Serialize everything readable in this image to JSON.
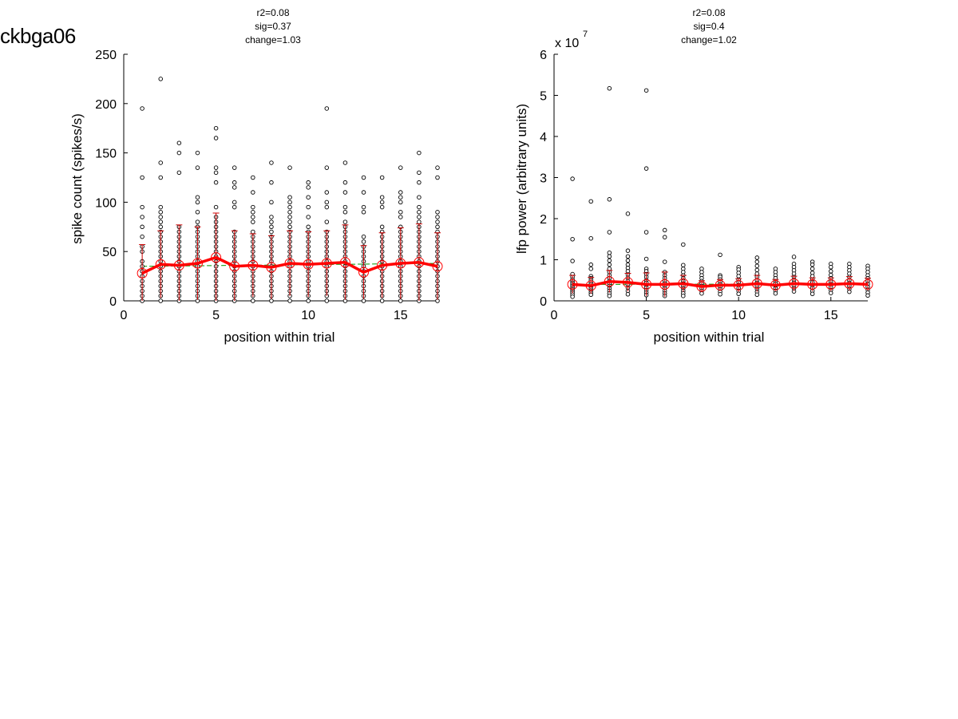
{
  "page_label": "ckbga06",
  "chart_data": [
    {
      "type": "scatter",
      "annotation": [
        "r2=0.08",
        "sig=0.37",
        "change=1.03"
      ],
      "xlabel": "position within trial",
      "ylabel": "spike count (spikes/s)",
      "exponent_label": "",
      "xlim": [
        0,
        17
      ],
      "ylim": [
        0,
        250
      ],
      "xticks": [
        0,
        5,
        10,
        15
      ],
      "xtick_labels": [
        "0",
        "5",
        "10",
        "15"
      ],
      "yticks": [
        0,
        50,
        100,
        150,
        200,
        250
      ],
      "ytick_labels": [
        "0",
        "50",
        "100",
        "150",
        "200",
        "250"
      ],
      "grid": false,
      "trial_points": [
        {
          "x": 1,
          "y": [
            195,
            125,
            95,
            85,
            75,
            65,
            55,
            50,
            40,
            35,
            30,
            25,
            20,
            15,
            10,
            5,
            0
          ]
        },
        {
          "x": 2,
          "y": [
            225,
            140,
            125,
            95,
            90,
            85,
            80,
            75,
            70,
            65,
            60,
            55,
            50,
            45,
            40,
            35,
            30,
            25,
            20,
            15,
            10,
            5,
            0
          ]
        },
        {
          "x": 3,
          "y": [
            160,
            150,
            130,
            75,
            70,
            65,
            60,
            55,
            50,
            45,
            40,
            35,
            30,
            25,
            20,
            15,
            10,
            5,
            0
          ]
        },
        {
          "x": 4,
          "y": [
            150,
            135,
            105,
            100,
            90,
            80,
            75,
            70,
            65,
            60,
            55,
            50,
            45,
            40,
            35,
            30,
            25,
            20,
            15,
            10,
            5,
            0
          ]
        },
        {
          "x": 5,
          "y": [
            175,
            165,
            135,
            130,
            120,
            95,
            85,
            80,
            75,
            70,
            65,
            60,
            55,
            50,
            45,
            40,
            35,
            30,
            25,
            20,
            15,
            10,
            5,
            0
          ]
        },
        {
          "x": 6,
          "y": [
            135,
            120,
            115,
            100,
            95,
            70,
            65,
            60,
            55,
            50,
            45,
            40,
            35,
            30,
            25,
            20,
            15,
            10,
            5,
            0
          ]
        },
        {
          "x": 7,
          "y": [
            125,
            110,
            95,
            90,
            85,
            80,
            70,
            65,
            60,
            55,
            50,
            45,
            40,
            35,
            30,
            25,
            20,
            15,
            10,
            5,
            0
          ]
        },
        {
          "x": 8,
          "y": [
            140,
            120,
            100,
            85,
            80,
            75,
            70,
            65,
            60,
            55,
            50,
            45,
            40,
            35,
            30,
            25,
            20,
            15,
            10,
            5,
            0
          ]
        },
        {
          "x": 9,
          "y": [
            135,
            105,
            100,
            95,
            90,
            85,
            80,
            75,
            70,
            65,
            60,
            55,
            50,
            45,
            40,
            35,
            30,
            25,
            20,
            15,
            10,
            5,
            0
          ]
        },
        {
          "x": 10,
          "y": [
            120,
            115,
            105,
            95,
            85,
            75,
            70,
            65,
            60,
            55,
            50,
            45,
            40,
            35,
            30,
            25,
            20,
            15,
            10,
            5,
            0
          ]
        },
        {
          "x": 11,
          "y": [
            195,
            135,
            110,
            100,
            95,
            80,
            70,
            65,
            60,
            55,
            50,
            45,
            40,
            35,
            30,
            25,
            20,
            15,
            10,
            5,
            0
          ]
        },
        {
          "x": 12,
          "y": [
            140,
            120,
            110,
            95,
            90,
            80,
            75,
            70,
            65,
            60,
            55,
            50,
            45,
            40,
            35,
            30,
            25,
            20,
            15,
            10,
            5,
            0
          ]
        },
        {
          "x": 13,
          "y": [
            125,
            110,
            95,
            90,
            65,
            60,
            55,
            50,
            45,
            40,
            35,
            30,
            25,
            20,
            15,
            10,
            5,
            0
          ]
        },
        {
          "x": 14,
          "y": [
            125,
            105,
            100,
            95,
            75,
            70,
            65,
            60,
            55,
            50,
            45,
            40,
            35,
            30,
            25,
            20,
            15,
            10,
            5,
            0
          ]
        },
        {
          "x": 15,
          "y": [
            135,
            110,
            105,
            100,
            90,
            85,
            75,
            70,
            65,
            60,
            55,
            50,
            45,
            40,
            35,
            30,
            25,
            20,
            15,
            10,
            5,
            0
          ]
        },
        {
          "x": 16,
          "y": [
            150,
            130,
            120,
            105,
            95,
            90,
            85,
            80,
            75,
            70,
            65,
            60,
            55,
            50,
            45,
            40,
            35,
            30,
            25,
            20,
            15,
            10,
            5,
            0
          ]
        },
        {
          "x": 17,
          "y": [
            135,
            125,
            90,
            85,
            80,
            75,
            70,
            65,
            60,
            55,
            50,
            45,
            40,
            35,
            30,
            25,
            20,
            15,
            10,
            5,
            0
          ]
        }
      ],
      "mean": {
        "x": [
          1,
          2,
          3,
          4,
          5,
          6,
          7,
          8,
          9,
          10,
          11,
          12,
          13,
          14,
          15,
          16,
          17
        ],
        "y": [
          28,
          37,
          36,
          38,
          44,
          35,
          36,
          34,
          38,
          37,
          38,
          39,
          29,
          36,
          38,
          39,
          35
        ]
      },
      "error": [
        29,
        34,
        41,
        37,
        45,
        36,
        32,
        32,
        33,
        33,
        33,
        38,
        27,
        33,
        36,
        39,
        34
      ],
      "fit": {
        "x": [
          1,
          17
        ],
        "y": [
          35,
          38
        ]
      },
      "colors": {
        "points": "#000000",
        "mean": "#ff0000",
        "error": "#cc0000",
        "fit": "#009900"
      }
    },
    {
      "type": "scatter",
      "annotation": [
        "r2=0.08",
        "sig=0.4",
        "change=1.02"
      ],
      "xlabel": "position within trial",
      "ylabel": "lfp power (arbitrary units)",
      "exponent_label": "x 10",
      "exponent_power": "7",
      "xlim": [
        0,
        17
      ],
      "ylim": [
        0,
        6
      ],
      "xticks": [
        0,
        5,
        10,
        15
      ],
      "xtick_labels": [
        "0",
        "5",
        "10",
        "15"
      ],
      "yticks": [
        0,
        1,
        2,
        3,
        4,
        5,
        6
      ],
      "ytick_labels": [
        "0",
        "1",
        "2",
        "3",
        "4",
        "5",
        "6"
      ],
      "grid": false,
      "trial_points": [
        {
          "x": 1,
          "y": [
            2.97,
            1.5,
            0.97,
            0.65,
            0.58,
            0.52,
            0.48,
            0.44,
            0.4,
            0.36,
            0.32,
            0.28,
            0.24,
            0.2,
            0.15,
            0.1
          ]
        },
        {
          "x": 2,
          "y": [
            2.42,
            1.52,
            0.88,
            0.78,
            0.6,
            0.55,
            0.5,
            0.45,
            0.4,
            0.35,
            0.3,
            0.25,
            0.2,
            0.15
          ]
        },
        {
          "x": 3,
          "y": [
            5.17,
            2.47,
            1.67,
            1.17,
            1.08,
            0.98,
            0.88,
            0.78,
            0.7,
            0.62,
            0.55,
            0.48,
            0.42,
            0.36,
            0.3,
            0.24,
            0.18,
            0.12
          ]
        },
        {
          "x": 4,
          "y": [
            2.12,
            1.22,
            1.08,
            0.98,
            0.88,
            0.8,
            0.72,
            0.64,
            0.56,
            0.48,
            0.4,
            0.32,
            0.24,
            0.16
          ]
        },
        {
          "x": 5,
          "y": [
            5.12,
            3.22,
            1.67,
            1.02,
            0.78,
            0.72,
            0.65,
            0.58,
            0.5,
            0.44,
            0.38,
            0.32,
            0.26,
            0.2,
            0.14
          ]
        },
        {
          "x": 6,
          "y": [
            1.72,
            1.55,
            0.95,
            0.7,
            0.62,
            0.55,
            0.48,
            0.42,
            0.36,
            0.3,
            0.24,
            0.18,
            0.12
          ]
        },
        {
          "x": 7,
          "y": [
            1.37,
            0.87,
            0.78,
            0.7,
            0.62,
            0.55,
            0.48,
            0.42,
            0.36,
            0.3,
            0.24,
            0.18,
            0.12
          ]
        },
        {
          "x": 8,
          "y": [
            0.78,
            0.7,
            0.62,
            0.55,
            0.48,
            0.42,
            0.36,
            0.3,
            0.24,
            0.18
          ]
        },
        {
          "x": 9,
          "y": [
            1.12,
            0.62,
            0.58,
            0.52,
            0.46,
            0.4,
            0.34,
            0.28,
            0.22,
            0.16
          ]
        },
        {
          "x": 10,
          "y": [
            0.82,
            0.76,
            0.68,
            0.6,
            0.52,
            0.45,
            0.38,
            0.31,
            0.24,
            0.17
          ]
        },
        {
          "x": 11,
          "y": [
            1.05,
            0.95,
            0.85,
            0.75,
            0.66,
            0.58,
            0.5,
            0.43,
            0.36,
            0.29,
            0.22,
            0.15
          ]
        },
        {
          "x": 12,
          "y": [
            0.78,
            0.7,
            0.62,
            0.55,
            0.48,
            0.42,
            0.36,
            0.3,
            0.24,
            0.18
          ]
        },
        {
          "x": 13,
          "y": [
            1.07,
            0.9,
            0.82,
            0.74,
            0.66,
            0.58,
            0.51,
            0.44,
            0.37,
            0.3,
            0.23
          ]
        },
        {
          "x": 14,
          "y": [
            0.95,
            0.88,
            0.78,
            0.68,
            0.6,
            0.52,
            0.45,
            0.38,
            0.31,
            0.24,
            0.17
          ]
        },
        {
          "x": 15,
          "y": [
            0.9,
            0.82,
            0.72,
            0.63,
            0.55,
            0.47,
            0.4,
            0.33,
            0.26,
            0.19
          ]
        },
        {
          "x": 16,
          "y": [
            0.9,
            0.82,
            0.74,
            0.66,
            0.58,
            0.5,
            0.43,
            0.36,
            0.29,
            0.22
          ]
        },
        {
          "x": 17,
          "y": [
            0.85,
            0.78,
            0.7,
            0.62,
            0.55,
            0.48,
            0.41,
            0.34,
            0.27,
            0.2,
            0.13
          ]
        }
      ],
      "mean": {
        "x": [
          1,
          2,
          3,
          4,
          5,
          6,
          7,
          8,
          9,
          10,
          11,
          12,
          13,
          14,
          15,
          16,
          17
        ],
        "y": [
          0.4,
          0.37,
          0.47,
          0.45,
          0.4,
          0.4,
          0.42,
          0.35,
          0.38,
          0.38,
          0.42,
          0.38,
          0.42,
          0.4,
          0.4,
          0.42,
          0.4
        ]
      },
      "error": [
        0.22,
        0.2,
        0.27,
        0.22,
        0.28,
        0.3,
        0.2,
        0.14,
        0.14,
        0.16,
        0.2,
        0.14,
        0.18,
        0.16,
        0.16,
        0.17,
        0.15
      ],
      "fit": {
        "x": [
          1,
          17
        ],
        "y": [
          0.4,
          0.41
        ]
      },
      "colors": {
        "points": "#000000",
        "mean": "#ff0000",
        "error": "#cc0000",
        "fit": "#009900"
      }
    }
  ]
}
